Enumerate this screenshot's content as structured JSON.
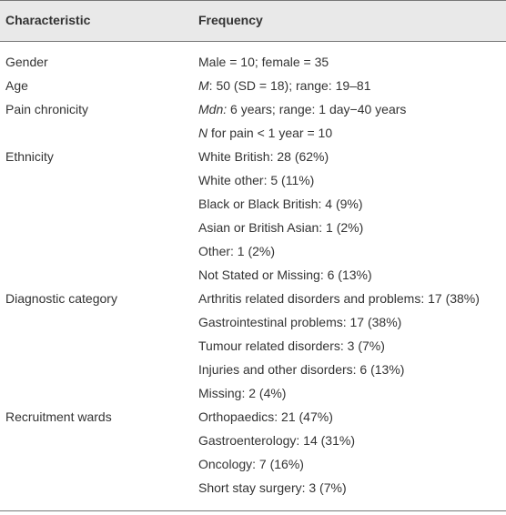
{
  "table": {
    "header": [
      "Characteristic",
      "Frequency"
    ],
    "rows": [
      {
        "characteristic": "Gender",
        "lines": [
          [
            {
              "text": "Male = 10; female = 35"
            }
          ]
        ]
      },
      {
        "characteristic": "Age",
        "lines": [
          [
            {
              "text": "M",
              "italic": true
            },
            {
              "text": ": 50 (SD = 18); range: 19–81"
            }
          ]
        ]
      },
      {
        "characteristic": "Pain chronicity",
        "lines": [
          [
            {
              "text": "Mdn:",
              "italic": true
            },
            {
              "text": " 6 years; range: 1 day−40 years"
            }
          ],
          [
            {
              "text": "N",
              "italic": true
            },
            {
              "text": " for pain < 1 year = 10"
            }
          ]
        ]
      },
      {
        "characteristic": "Ethnicity",
        "lines": [
          [
            {
              "text": "White British: 28 (62%)"
            }
          ],
          [
            {
              "text": "White other: 5 (11%)"
            }
          ],
          [
            {
              "text": "Black or Black British: 4 (9%)"
            }
          ],
          [
            {
              "text": "Asian or British Asian: 1 (2%)"
            }
          ],
          [
            {
              "text": "Other: 1 (2%)"
            }
          ],
          [
            {
              "text": "Not Stated or Missing: 6 (13%)"
            }
          ]
        ]
      },
      {
        "characteristic": "Diagnostic category",
        "lines": [
          [
            {
              "text": "Arthritis related disorders and problems: 17 (38%)"
            }
          ],
          [
            {
              "text": "Gastrointestinal problems: 17 (38%)"
            }
          ],
          [
            {
              "text": "Tumour related disorders: 3 (7%)"
            }
          ],
          [
            {
              "text": "Injuries and other disorders: 6 (13%)"
            }
          ],
          [
            {
              "text": "Missing: 2 (4%)"
            }
          ]
        ]
      },
      {
        "characteristic": "Recruitment wards",
        "lines": [
          [
            {
              "text": "Orthopaedics: 21 (47%)"
            }
          ],
          [
            {
              "text": "Gastroenterology: 14 (31%)"
            }
          ],
          [
            {
              "text": "Oncology: 7 (16%)"
            }
          ],
          [
            {
              "text": "Short stay surgery: 3 (7%)"
            }
          ]
        ]
      }
    ]
  }
}
